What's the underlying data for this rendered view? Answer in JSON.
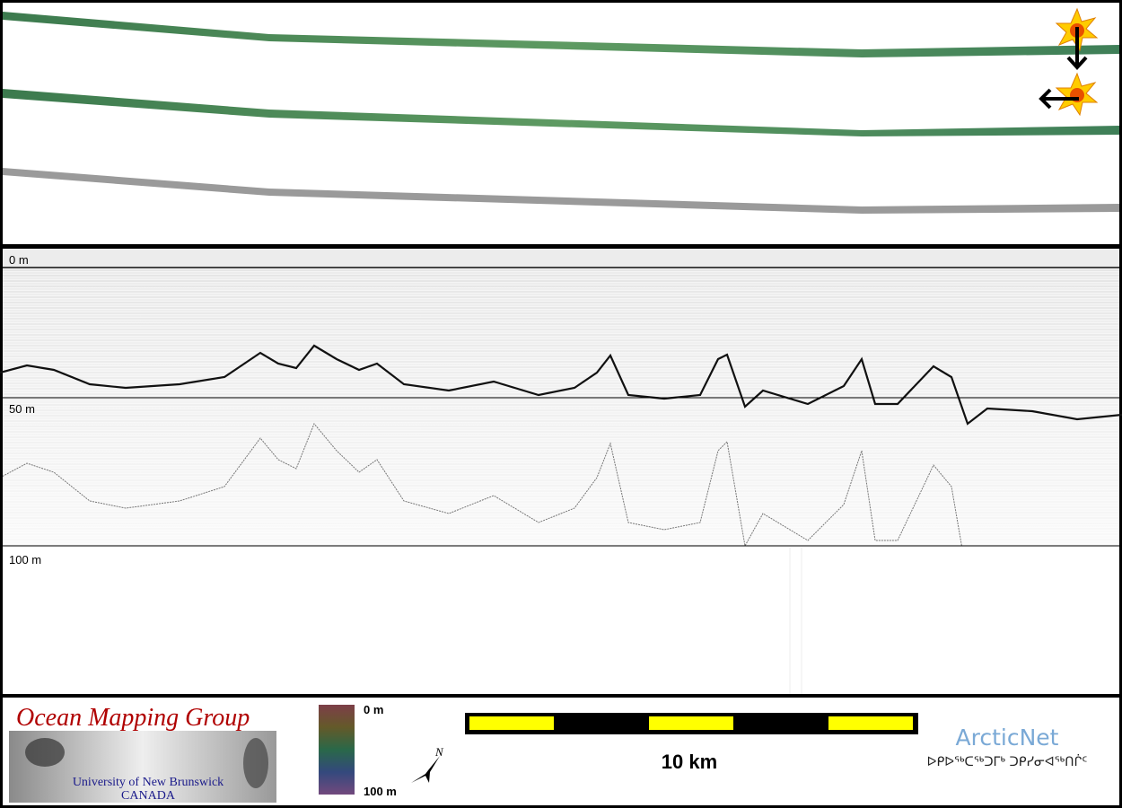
{
  "profile": {
    "depth_labels": [
      "0 m",
      "50 m",
      "100 m"
    ]
  },
  "footer": {
    "group_name": "Ocean Mapping Group",
    "university": "University of New Brunswick",
    "country": "CANADA",
    "colorbar_labels": [
      "0 m",
      "100 m"
    ],
    "north_label": "N",
    "scale_label": "10 km",
    "partner": "ArcticNet",
    "partner_syllabics": "ᐅᑭᐅᖅᑕᖅᑐᒥᒃ ᑐᑭᓯᓂᐊᖅᑎᒌᑦ"
  }
}
